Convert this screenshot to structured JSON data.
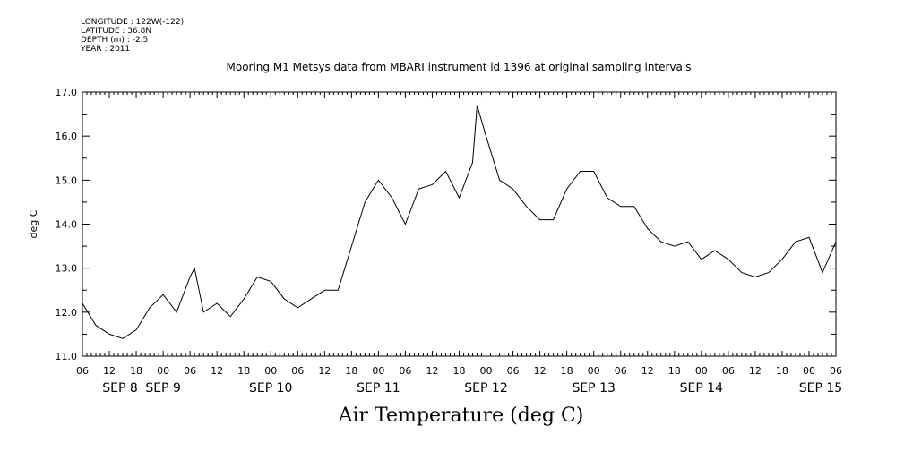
{
  "header": {
    "longitude": "LONGITUDE : 122W(-122)",
    "latitude": "LATITUDE : 36.8N",
    "depth": "DEPTH (m) : -2.5",
    "year": "YEAR : 2011"
  },
  "chart_data": {
    "type": "line",
    "title": "Mooring M1 Metsys data from MBARI instrument id 1396 at original sampling intervals",
    "bottom_title": "Air Temperature (deg C)",
    "xlabel": "",
    "ylabel": "deg C",
    "ylim": [
      11.0,
      17.0
    ],
    "xlim": [
      "2011-09-08T06:00",
      "2011-09-15T06:00"
    ],
    "yticks": [
      "11.0",
      "12.0",
      "13.0",
      "14.0",
      "15.0",
      "16.0",
      "17.0"
    ],
    "hour_ticks": [
      "06",
      "12",
      "18",
      "00",
      "06",
      "12",
      "18",
      "00",
      "06",
      "12",
      "18",
      "00",
      "06",
      "12",
      "18",
      "00",
      "06",
      "12",
      "18",
      "00",
      "06",
      "12",
      "18",
      "00",
      "06",
      "12",
      "18",
      "00",
      "06"
    ],
    "day_labels": [
      "SEP  8",
      "SEP  9",
      "SEP 10",
      "SEP 11",
      "SEP 12",
      "SEP 13",
      "SEP 14",
      "SEP 15"
    ],
    "grid": false,
    "series": [
      {
        "x": [
          "2011-09-08T06:00",
          "2011-09-08T09:00",
          "2011-09-08T12:00",
          "2011-09-08T15:00",
          "2011-09-08T18:00",
          "2011-09-08T21:00",
          "2011-09-09T00:00",
          "2011-09-09T03:00",
          "2011-09-09T06:00",
          "2011-09-09T07:00",
          "2011-09-09T09:00",
          "2011-09-09T12:00",
          "2011-09-09T15:00",
          "2011-09-09T18:00",
          "2011-09-09T21:00",
          "2011-09-10T00:00",
          "2011-09-10T03:00",
          "2011-09-10T06:00",
          "2011-09-10T09:00",
          "2011-09-10T12:00",
          "2011-09-10T15:00",
          "2011-09-10T18:00",
          "2011-09-10T21:00",
          "2011-09-11T00:00",
          "2011-09-11T03:00",
          "2011-09-11T06:00",
          "2011-09-11T09:00",
          "2011-09-11T12:00",
          "2011-09-11T15:00",
          "2011-09-11T18:00",
          "2011-09-11T21:00",
          "2011-09-11T22:00",
          "2011-09-12T00:00",
          "2011-09-12T03:00",
          "2011-09-12T06:00",
          "2011-09-12T09:00",
          "2011-09-12T12:00",
          "2011-09-12T15:00",
          "2011-09-12T18:00",
          "2011-09-12T21:00",
          "2011-09-13T00:00",
          "2011-09-13T03:00",
          "2011-09-13T06:00",
          "2011-09-13T09:00",
          "2011-09-13T12:00",
          "2011-09-13T15:00",
          "2011-09-13T18:00",
          "2011-09-13T21:00",
          "2011-09-14T00:00",
          "2011-09-14T03:00",
          "2011-09-14T06:00",
          "2011-09-14T09:00",
          "2011-09-14T12:00",
          "2011-09-14T15:00",
          "2011-09-14T18:00",
          "2011-09-14T21:00",
          "2011-09-15T00:00",
          "2011-09-15T03:00",
          "2011-09-15T06:00"
        ],
        "values": [
          12.2,
          11.7,
          11.5,
          11.4,
          11.6,
          12.1,
          12.4,
          12.0,
          12.8,
          13.0,
          12.0,
          12.2,
          11.9,
          12.3,
          12.8,
          12.7,
          12.3,
          12.1,
          12.3,
          12.5,
          12.5,
          13.5,
          14.5,
          15.0,
          14.6,
          14.0,
          14.8,
          14.9,
          15.2,
          14.6,
          15.4,
          16.7,
          16.0,
          15.0,
          14.8,
          14.4,
          14.1,
          14.1,
          14.8,
          15.2,
          15.2,
          14.6,
          14.4,
          14.4,
          13.9,
          13.6,
          13.5,
          13.6,
          13.2,
          13.4,
          13.2,
          12.9,
          12.8,
          12.9,
          13.2,
          13.6,
          13.7,
          12.9,
          13.6
        ]
      }
    ]
  }
}
